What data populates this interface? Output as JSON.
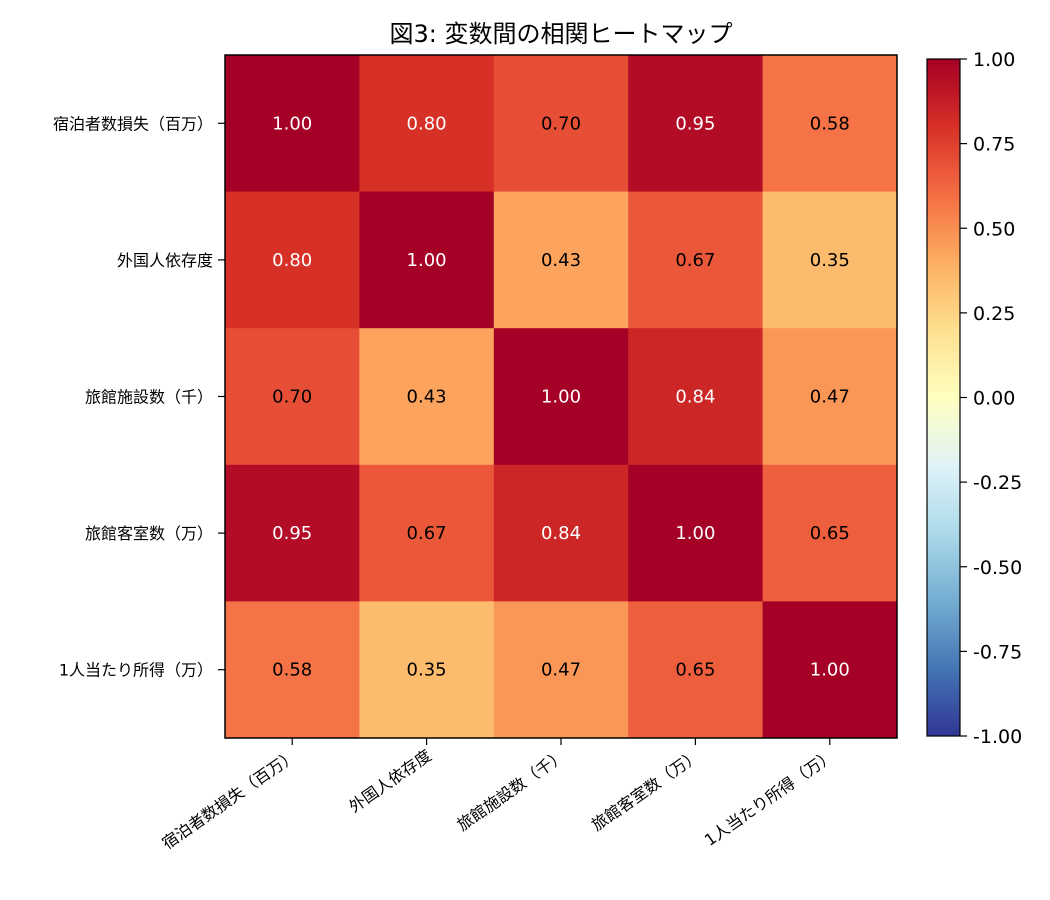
{
  "chart_data": {
    "type": "heatmap",
    "title": "図3: 変数間の相関ヒートマップ",
    "row_labels": [
      "宿泊者数損失（百万）",
      "外国人依存度",
      "旅館施設数（千）",
      "旅館客室数（万）",
      "1人当たり所得（万）"
    ],
    "col_labels": [
      "宿泊者数損失（百万）",
      "外国人依存度",
      "旅館施設数（千）",
      "旅館客室数（万）",
      "1人当たり所得（万）"
    ],
    "values": [
      [
        1.0,
        0.8,
        0.7,
        0.95,
        0.58
      ],
      [
        0.8,
        1.0,
        0.43,
        0.67,
        0.35
      ],
      [
        0.7,
        0.43,
        1.0,
        0.84,
        0.47
      ],
      [
        0.95,
        0.67,
        0.84,
        1.0,
        0.65
      ],
      [
        0.58,
        0.35,
        0.47,
        0.65,
        1.0
      ]
    ],
    "cell_labels": [
      [
        "1.00",
        "0.80",
        "0.70",
        "0.95",
        "0.58"
      ],
      [
        "0.80",
        "1.00",
        "0.43",
        "0.67",
        "0.35"
      ],
      [
        "0.70",
        "0.43",
        "1.00",
        "0.84",
        "0.47"
      ],
      [
        "0.95",
        "0.67",
        "0.84",
        "1.00",
        "0.65"
      ],
      [
        "0.58",
        "0.35",
        "0.47",
        "0.65",
        "1.00"
      ]
    ],
    "colorscale": "RdYlBu_r",
    "vmin": -1.0,
    "vmax": 1.0,
    "colorbar_ticks": [
      1.0,
      0.75,
      0.5,
      0.25,
      0.0,
      -0.25,
      -0.5,
      -0.75,
      -1.0
    ],
    "colorbar_tick_labels": [
      "1.00",
      "0.75",
      "0.50",
      "0.25",
      "0.00",
      "-0.25",
      "-0.50",
      "-0.75",
      "-1.00"
    ],
    "colorbar_stops": [
      "#313695",
      "#4575b4",
      "#74add1",
      "#abd9e9",
      "#e0f3f8",
      "#ffffbf",
      "#fee090",
      "#fdae61",
      "#f46d43",
      "#d73027",
      "#a50026"
    ]
  }
}
